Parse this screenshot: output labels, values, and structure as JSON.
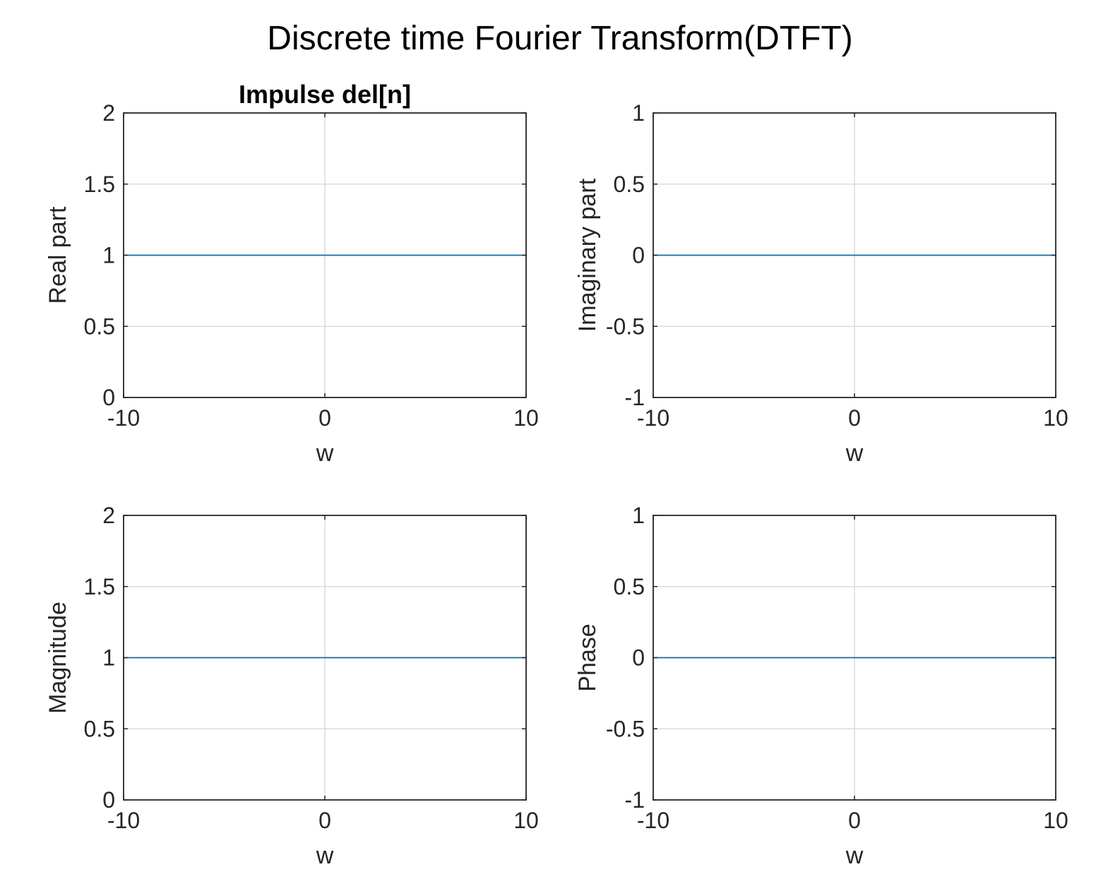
{
  "figure": {
    "title": "Discrete time Fourier Transform(DTFT)"
  },
  "style": {
    "line_color": "#0072BD",
    "axes_color": "#262626",
    "grid_color": "#dcdcdc",
    "background": "#ffffff"
  },
  "chart_data": [
    {
      "type": "line",
      "title": "Impulse del[n]",
      "xlabel": "w",
      "ylabel": "Real part",
      "xlim": [
        -10,
        10
      ],
      "ylim": [
        0,
        2
      ],
      "xticks": [
        -10,
        0,
        10
      ],
      "yticks": [
        0,
        0.5,
        1,
        1.5,
        2
      ],
      "xtick_labels": [
        "-10",
        "0",
        "10"
      ],
      "ytick_labels": [
        "0",
        "0.5",
        "1",
        "1.5",
        "2"
      ],
      "grid": true,
      "series": [
        {
          "x": [
            -10,
            10
          ],
          "y": [
            1,
            1
          ]
        }
      ]
    },
    {
      "type": "line",
      "title": "",
      "xlabel": "w",
      "ylabel": "Imaginary part",
      "xlim": [
        -10,
        10
      ],
      "ylim": [
        -1,
        1
      ],
      "xticks": [
        -10,
        0,
        10
      ],
      "yticks": [
        -1,
        -0.5,
        0,
        0.5,
        1
      ],
      "xtick_labels": [
        "-10",
        "0",
        "10"
      ],
      "ytick_labels": [
        "-1",
        "-0.5",
        "0",
        "0.5",
        "1"
      ],
      "grid": true,
      "series": [
        {
          "x": [
            -10,
            10
          ],
          "y": [
            0,
            0
          ]
        }
      ]
    },
    {
      "type": "line",
      "title": "",
      "xlabel": "w",
      "ylabel": "Magnitude",
      "xlim": [
        -10,
        10
      ],
      "ylim": [
        0,
        2
      ],
      "xticks": [
        -10,
        0,
        10
      ],
      "yticks": [
        0,
        0.5,
        1,
        1.5,
        2
      ],
      "xtick_labels": [
        "-10",
        "0",
        "10"
      ],
      "ytick_labels": [
        "0",
        "0.5",
        "1",
        "1.5",
        "2"
      ],
      "grid": true,
      "series": [
        {
          "x": [
            -10,
            10
          ],
          "y": [
            1,
            1
          ]
        }
      ]
    },
    {
      "type": "line",
      "title": "",
      "xlabel": "w",
      "ylabel": "Phase",
      "xlim": [
        -10,
        10
      ],
      "ylim": [
        -1,
        1
      ],
      "xticks": [
        -10,
        0,
        10
      ],
      "yticks": [
        -1,
        -0.5,
        0,
        0.5,
        1
      ],
      "xtick_labels": [
        "-10",
        "0",
        "10"
      ],
      "ytick_labels": [
        "-1",
        "-0.5",
        "0",
        "0.5",
        "1"
      ],
      "grid": true,
      "series": [
        {
          "x": [
            -10,
            10
          ],
          "y": [
            0,
            0
          ]
        }
      ]
    }
  ]
}
